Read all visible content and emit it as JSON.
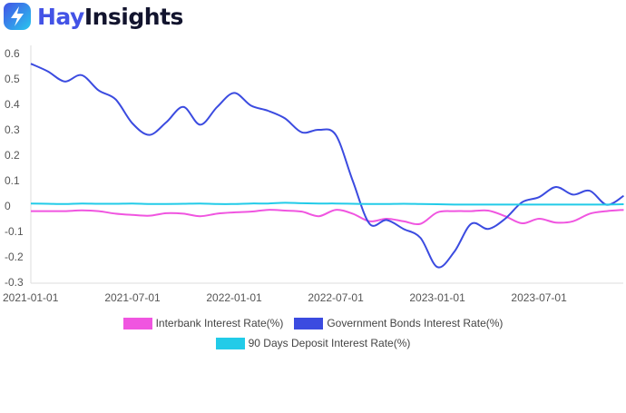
{
  "brand": {
    "name_part1": "Hay",
    "name_part2": "Insights",
    "logo_text": "HayInsights"
  },
  "chart_data": {
    "type": "line",
    "title": "",
    "xlabel": "",
    "ylabel": "",
    "ylim": [
      -0.3,
      0.6
    ],
    "yticks": [
      "0.6",
      "0.5",
      "0.4",
      "0.3",
      "0.2",
      "0.1",
      "0",
      "-0.1",
      "-0.2",
      "-0.3"
    ],
    "xticks": [
      "2021-01-01",
      "2021-07-01",
      "2022-01-01",
      "2022-07-01",
      "2023-01-01",
      "2023-07-01"
    ],
    "x_start": "2021-01",
    "x_frequency": "monthly",
    "x_end": "2023-12",
    "grid": false,
    "legend_position": "bottom",
    "series": [
      {
        "name": "Interbank Interest Rate(%)",
        "color": "#f055e0",
        "values": [
          -0.02,
          -0.02,
          -0.02,
          -0.017,
          -0.02,
          -0.03,
          -0.035,
          -0.038,
          -0.028,
          -0.03,
          -0.04,
          -0.03,
          -0.025,
          -0.022,
          -0.015,
          -0.018,
          -0.022,
          -0.04,
          -0.015,
          -0.03,
          -0.06,
          -0.05,
          -0.06,
          -0.07,
          -0.025,
          -0.02,
          -0.02,
          -0.018,
          -0.04,
          -0.068,
          -0.05,
          -0.065,
          -0.06,
          -0.03,
          -0.02,
          -0.015
        ]
      },
      {
        "name": "Government Bonds Interest Rate(%)",
        "color": "#3b4be0",
        "values": [
          0.56,
          0.53,
          0.49,
          0.515,
          0.455,
          0.42,
          0.325,
          0.28,
          0.33,
          0.39,
          0.32,
          0.39,
          0.445,
          0.395,
          0.375,
          0.345,
          0.29,
          0.3,
          0.28,
          0.1,
          -0.07,
          -0.055,
          -0.09,
          -0.125,
          -0.24,
          -0.18,
          -0.07,
          -0.09,
          -0.05,
          0.015,
          0.035,
          0.075,
          0.045,
          0.06,
          0.005,
          0.04
        ]
      },
      {
        "name": "90 Days Deposit Interest Rate(%)",
        "color": "#22cbe8",
        "values": [
          0.01,
          0.009,
          0.008,
          0.01,
          0.009,
          0.009,
          0.01,
          0.008,
          0.008,
          0.009,
          0.01,
          0.008,
          0.008,
          0.01,
          0.01,
          0.013,
          0.011,
          0.01,
          0.01,
          0.009,
          0.008,
          0.008,
          0.009,
          0.008,
          0.007,
          0.006,
          0.006,
          0.006,
          0.006,
          0.006,
          0.006,
          0.006,
          0.006,
          0.006,
          0.006,
          0.007
        ]
      }
    ]
  }
}
